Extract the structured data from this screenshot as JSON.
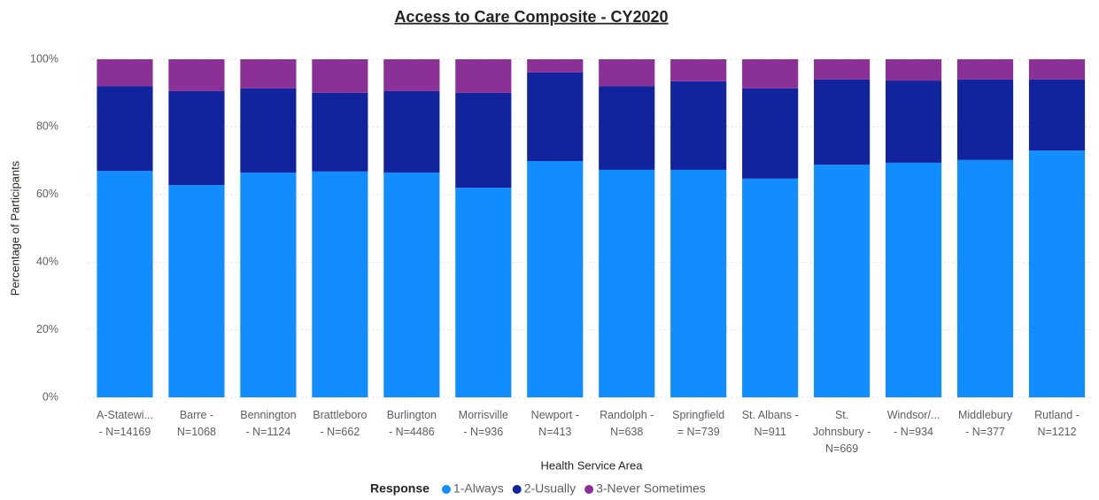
{
  "chart_data": {
    "type": "stacked_bar_100",
    "title": "Access to Care Composite - CY2020",
    "x_label": "Health Service Area",
    "y_label": "Percentage of Participants",
    "legend_title": "Response",
    "categories": [
      "A-Statewi...\n- N=14169",
      "Barre -\nN=1068",
      "Bennington\n- N=1124",
      "Brattleboro\n- N=662",
      "Burlington\n- N=4486",
      "Morrisville\n- N=936",
      "Newport -\nN=413",
      "Randolph -\nN=638",
      "Springfield\n= N=739",
      "St. Albans -\nN=911",
      "St.\nJohnsbury -\nN=669",
      "Windsor/...\n- N=934",
      "Middlebury\n- N=377",
      "Rutland -\nN=1212"
    ],
    "series": [
      {
        "name": "1-Always",
        "color": "#118dff",
        "values": [
          67.0,
          62.8,
          66.5,
          66.8,
          66.5,
          62.0,
          69.9,
          67.3,
          67.3,
          64.7,
          68.8,
          69.4,
          70.2,
          73.0
        ]
      },
      {
        "name": "2-Usually",
        "color": "#12239e",
        "values": [
          25.1,
          27.8,
          24.9,
          23.3,
          24.1,
          28.1,
          26.2,
          24.8,
          26.2,
          26.7,
          25.2,
          24.3,
          23.8,
          21.0
        ]
      },
      {
        "name": "3-Never Sometimes",
        "color": "#8a3096",
        "values": [
          7.9,
          9.4,
          8.6,
          9.9,
          9.4,
          9.9,
          3.9,
          7.9,
          6.5,
          8.6,
          6.0,
          6.3,
          6.0,
          6.0
        ]
      }
    ],
    "ylim": [
      0,
      100
    ],
    "yticks": [
      {
        "value": 0,
        "label": "0%"
      },
      {
        "value": 20,
        "label": "20%"
      },
      {
        "value": 40,
        "label": "40%"
      },
      {
        "value": 60,
        "label": "60%"
      },
      {
        "value": 80,
        "label": "80%"
      },
      {
        "value": 100,
        "label": "100%"
      }
    ],
    "grid": true
  }
}
